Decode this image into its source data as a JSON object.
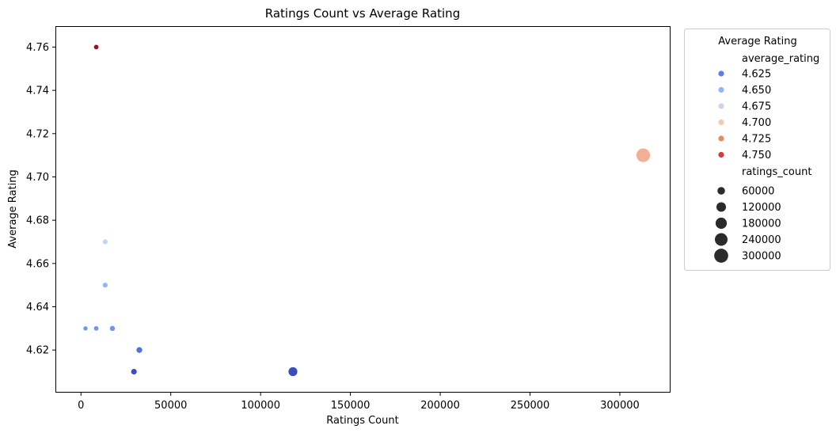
{
  "chart_data": {
    "type": "scatter",
    "title": "Ratings Count vs Average Rating",
    "xlabel": "Ratings Count",
    "ylabel": "Average Rating",
    "xlim": [
      -14000,
      328000
    ],
    "ylim": [
      4.6005,
      4.7695
    ],
    "xticks": [
      0,
      50000,
      100000,
      150000,
      200000,
      250000,
      300000
    ],
    "yticks": [
      4.62,
      4.64,
      4.66,
      4.68,
      4.7,
      4.72,
      4.74,
      4.76
    ],
    "xtick_labels": [
      "0",
      "50000",
      "100000",
      "150000",
      "200000",
      "250000",
      "300000"
    ],
    "ytick_labels": [
      "4.62",
      "4.64",
      "4.66",
      "4.68",
      "4.70",
      "4.72",
      "4.74",
      "4.76"
    ],
    "grid": false,
    "points": [
      {
        "x": 8500,
        "y": 4.76,
        "color": "#b40426"
      },
      {
        "x": 313000,
        "y": 4.71,
        "color": "#f4b096"
      },
      {
        "x": 13500,
        "y": 4.67,
        "color": "#c0d4f5"
      },
      {
        "x": 13500,
        "y": 4.65,
        "color": "#93b5fe"
      },
      {
        "x": 2500,
        "y": 4.63,
        "color": "#6f92f3"
      },
      {
        "x": 8500,
        "y": 4.63,
        "color": "#6f92f3"
      },
      {
        "x": 17500,
        "y": 4.63,
        "color": "#6f92f3"
      },
      {
        "x": 32500,
        "y": 4.62,
        "color": "#5470de"
      },
      {
        "x": 29500,
        "y": 4.61,
        "color": "#3b4cc0"
      },
      {
        "x": 118000,
        "y": 4.61,
        "color": "#3b4cc0"
      }
    ],
    "legend": {
      "title": "Average Rating",
      "placement": "outside-right",
      "hue_header": "average_rating",
      "hue_entries": [
        {
          "label": "4.625",
          "color": "#5e7de7"
        },
        {
          "label": "4.650",
          "color": "#93b5fe"
        },
        {
          "label": "4.675",
          "color": "#c6d6f1"
        },
        {
          "label": "4.700",
          "color": "#efcbb6"
        },
        {
          "label": "4.725",
          "color": "#e8876b"
        },
        {
          "label": "4.750",
          "color": "#ce3d3f"
        }
      ],
      "size_header": "ratings_count",
      "size_entries": [
        {
          "label": "60000",
          "value": 60000
        },
        {
          "label": "120000",
          "value": 120000
        },
        {
          "label": "180000",
          "value": 180000
        },
        {
          "label": "240000",
          "value": 240000
        },
        {
          "label": "300000",
          "value": 300000
        }
      ]
    }
  }
}
